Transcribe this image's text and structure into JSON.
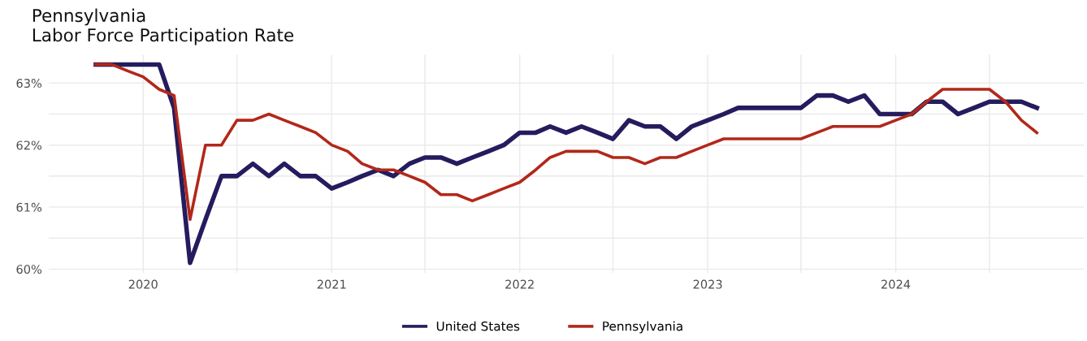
{
  "chart_data": {
    "type": "line",
    "title": "Pennsylvania\nLabor Force Participation Rate",
    "x": [
      "2019-10",
      "2019-11",
      "2019-12",
      "2020-01",
      "2020-02",
      "2020-03",
      "2020-04",
      "2020-05",
      "2020-06",
      "2020-07",
      "2020-08",
      "2020-09",
      "2020-10",
      "2020-11",
      "2020-12",
      "2021-01",
      "2021-02",
      "2021-03",
      "2021-04",
      "2021-05",
      "2021-06",
      "2021-07",
      "2021-08",
      "2021-09",
      "2021-10",
      "2021-11",
      "2021-12",
      "2022-01",
      "2022-02",
      "2022-03",
      "2022-04",
      "2022-05",
      "2022-06",
      "2022-07",
      "2022-08",
      "2022-09",
      "2022-10",
      "2022-11",
      "2022-12",
      "2023-01",
      "2023-02",
      "2023-03",
      "2023-04",
      "2023-05",
      "2023-06",
      "2023-07",
      "2023-08",
      "2023-09",
      "2023-10",
      "2023-11",
      "2023-12",
      "2024-01",
      "2024-02",
      "2024-03",
      "2024-04",
      "2024-05",
      "2024-06",
      "2024-07",
      "2024-08",
      "2024-09",
      "2024-10"
    ],
    "series": [
      {
        "name": "United States",
        "color": "#241c5e",
        "values": [
          63.3,
          63.3,
          63.3,
          63.3,
          63.3,
          62.6,
          60.1,
          60.8,
          61.5,
          61.5,
          61.7,
          61.5,
          61.7,
          61.5,
          61.5,
          61.3,
          61.4,
          61.5,
          61.6,
          61.5,
          61.7,
          61.8,
          61.8,
          61.7,
          61.8,
          61.9,
          62.0,
          62.2,
          62.2,
          62.3,
          62.2,
          62.3,
          62.2,
          62.1,
          62.4,
          62.3,
          62.3,
          62.1,
          62.3,
          62.4,
          62.5,
          62.6,
          62.6,
          62.6,
          62.6,
          62.6,
          62.8,
          62.8,
          62.7,
          62.8,
          62.5,
          62.5,
          62.5,
          62.7,
          62.7,
          62.5,
          62.6,
          62.7,
          62.7,
          62.7,
          62.6
        ]
      },
      {
        "name": "Pennsylvania",
        "color": "#b2281a",
        "values": [
          63.3,
          63.3,
          63.2,
          63.1,
          62.9,
          62.8,
          60.8,
          62.0,
          62.0,
          62.4,
          62.4,
          62.5,
          62.4,
          62.3,
          62.2,
          62.0,
          61.9,
          61.7,
          61.6,
          61.6,
          61.5,
          61.4,
          61.2,
          61.2,
          61.1,
          61.2,
          61.3,
          61.4,
          61.6,
          61.8,
          61.9,
          61.9,
          61.9,
          61.8,
          61.8,
          61.7,
          61.8,
          61.8,
          61.9,
          62.0,
          62.1,
          62.1,
          62.1,
          62.1,
          62.1,
          62.1,
          62.2,
          62.3,
          62.3,
          62.3,
          62.3,
          62.4,
          62.5,
          62.7,
          62.9,
          62.9,
          62.9,
          62.9,
          62.7,
          62.4,
          62.2
        ]
      }
    ],
    "xlim": [
      "2019-07-02",
      "2024-12-31"
    ],
    "xticks": [
      {
        "value": "2020-01-01",
        "label": "2020"
      },
      {
        "value": "2020-07-01",
        "label": null
      },
      {
        "value": "2021-01-01",
        "label": "2021"
      },
      {
        "value": "2021-07-01",
        "label": null
      },
      {
        "value": "2022-01-01",
        "label": "2022"
      },
      {
        "value": "2022-07-01",
        "label": null
      },
      {
        "value": "2023-01-01",
        "label": "2023"
      },
      {
        "value": "2023-07-01",
        "label": null
      },
      {
        "value": "2024-01-01",
        "label": "2024"
      },
      {
        "value": "2024-07-01",
        "label": null
      }
    ],
    "ylim": [
      59.94,
      63.46
    ],
    "yticks": [
      {
        "value": 60,
        "label": "60%"
      },
      {
        "value": 60.5,
        "label": null
      },
      {
        "value": 61,
        "label": "61%"
      },
      {
        "value": 61.5,
        "label": null
      },
      {
        "value": 62,
        "label": "62%"
      },
      {
        "value": 62.5,
        "label": null
      },
      {
        "value": 63,
        "label": "63%"
      }
    ],
    "grid": true,
    "legend": "bottom",
    "marker": "none",
    "line_style": "solid"
  }
}
